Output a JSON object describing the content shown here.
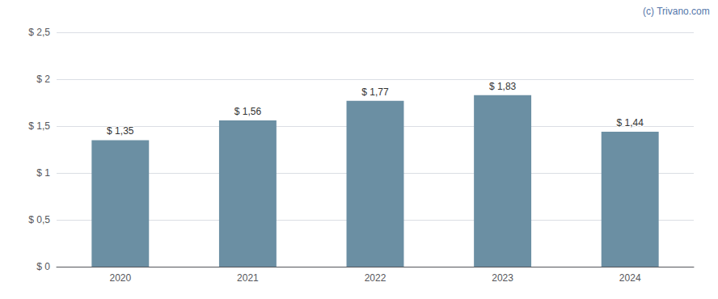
{
  "chart_data": {
    "type": "bar",
    "categories": [
      "2020",
      "2021",
      "2022",
      "2023",
      "2024"
    ],
    "values": [
      1.35,
      1.56,
      1.77,
      1.83,
      1.44
    ],
    "value_labels": [
      "$ 1,35",
      "$ 1,56",
      "$ 1,77",
      "$ 1,83",
      "$ 1,44"
    ],
    "data_labels": true,
    "color": "#6b8fa3",
    "ylim": [
      0,
      2.5
    ],
    "yticks": [
      {
        "value": 0,
        "label": "$ 0"
      },
      {
        "value": 0.5,
        "label": "$ 0,5"
      },
      {
        "value": 1.0,
        "label": "$ 1"
      },
      {
        "value": 1.5,
        "label": "$ 1,5"
      },
      {
        "value": 2.0,
        "label": "$ 2"
      },
      {
        "value": 2.5,
        "label": "$ 2,5"
      }
    ],
    "grid": true,
    "annotations": [
      {
        "text": "(c) Trivano.com",
        "color": "#5577aa"
      }
    ]
  }
}
